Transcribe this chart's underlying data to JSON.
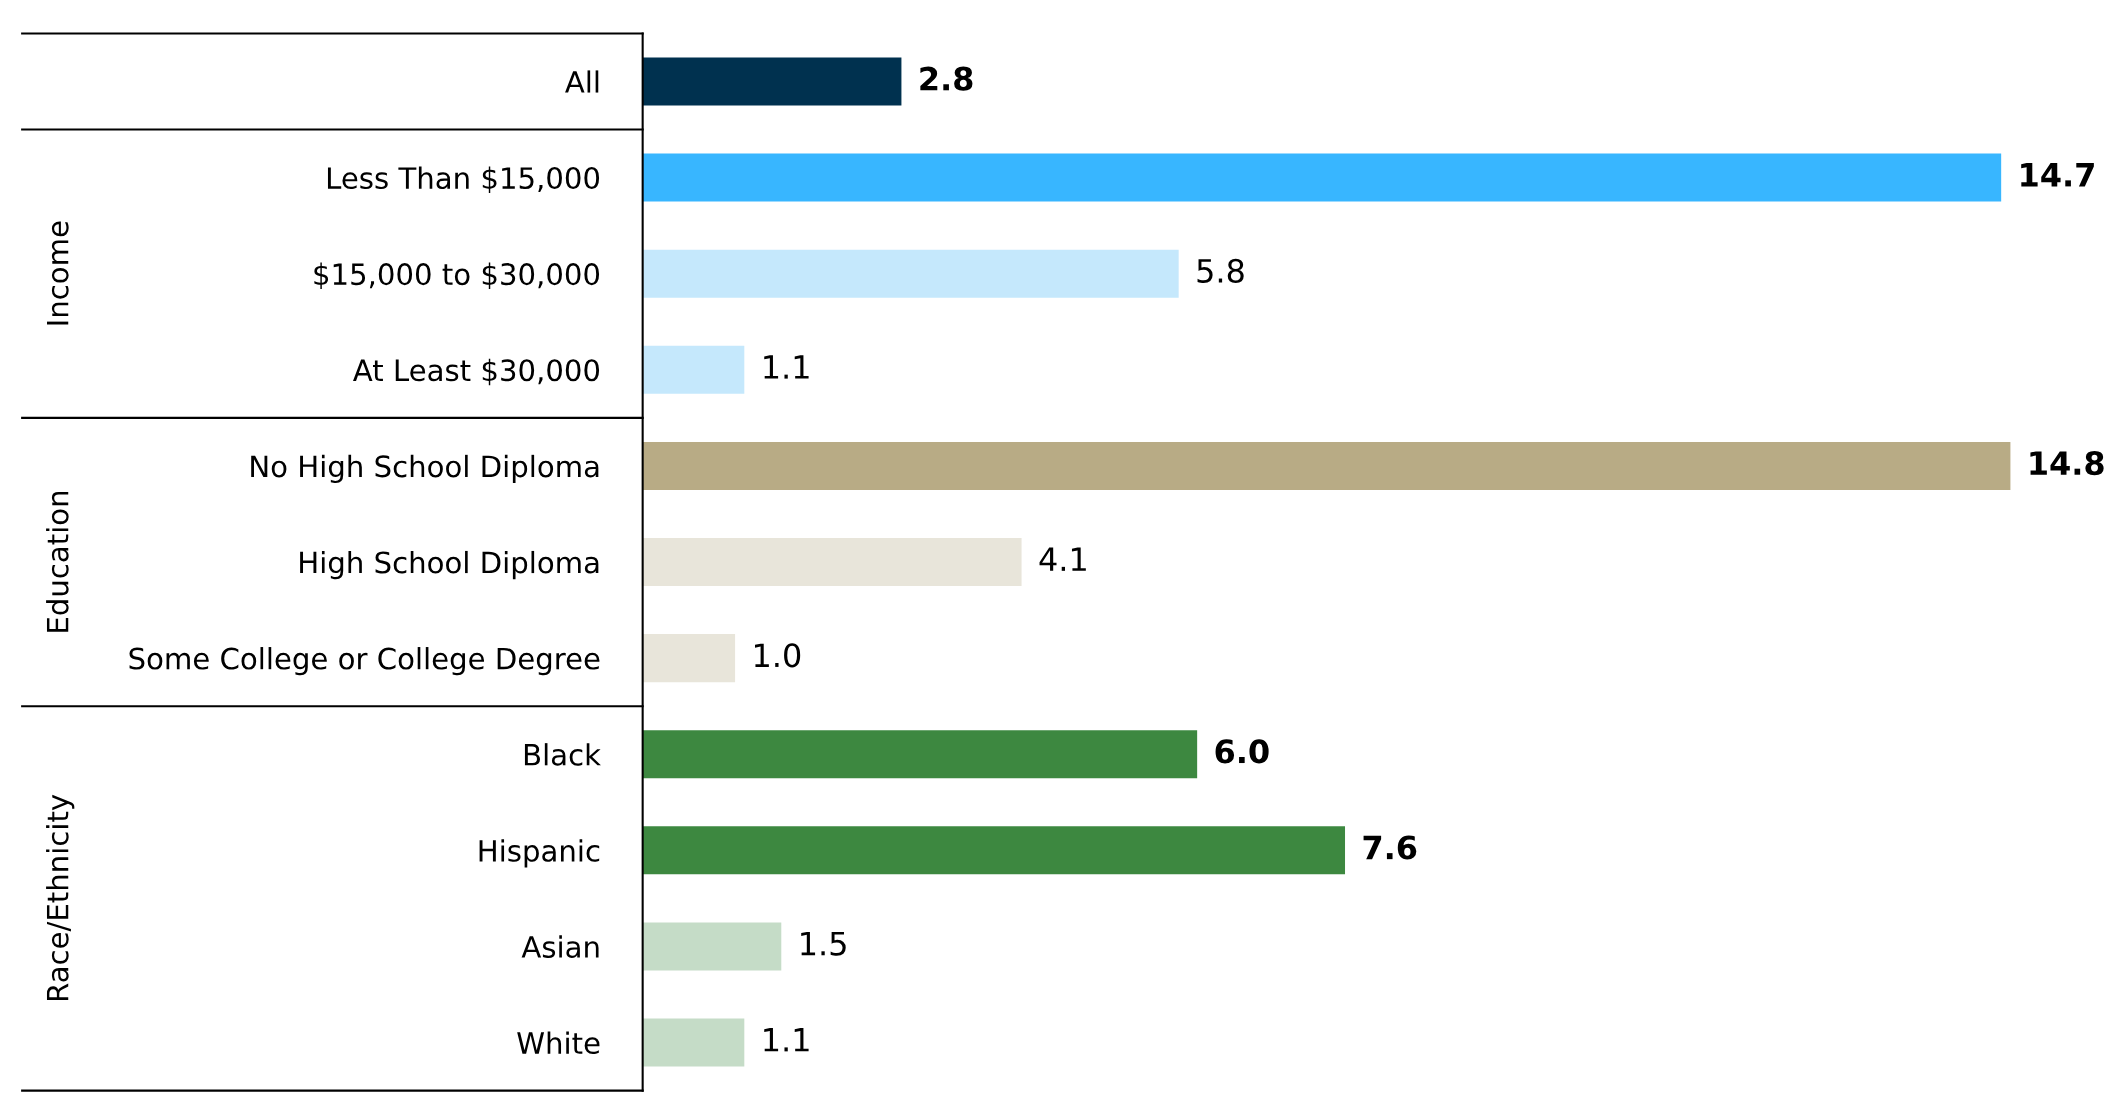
{
  "chart_data": {
    "type": "bar",
    "orientation": "horizontal",
    "categories": [
      "All",
      "Less Than $15,000",
      "$15,000 to $30,000",
      "At Least $30,000",
      "No High School Diploma",
      "High School Diploma",
      "Some College or College Degree",
      "Black",
      "Hispanic",
      "Asian",
      "White"
    ],
    "values": [
      2.8,
      14.7,
      5.8,
      1.1,
      14.8,
      4.1,
      1.0,
      6.0,
      7.6,
      1.5,
      1.1
    ],
    "colors": [
      "#00314f",
      "#38b6ff",
      "#c5e8fc",
      "#c5e8fc",
      "#b8ab85",
      "#e8e5da",
      "#e8e5da",
      "#3d8840",
      "#3d8840",
      "#c5dcc7",
      "#c5dcc7"
    ],
    "value_labels": [
      "2.8",
      "14.7",
      "5.8",
      "1.1",
      "14.8",
      "4.1",
      "1.0",
      "6.0",
      "7.6",
      "1.5",
      "1.1"
    ],
    "annotations": [
      "Income",
      "Education",
      "Race/Ethnicity"
    ],
    "grid": false,
    "legend": false
  }
}
